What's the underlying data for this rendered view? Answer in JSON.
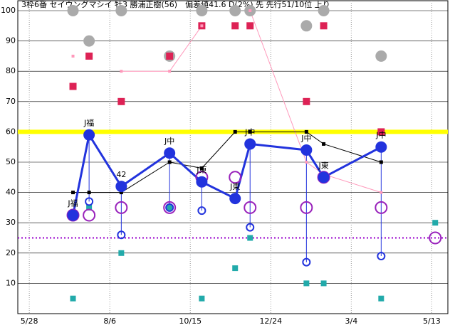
{
  "chart_data": {
    "type": "line",
    "title": "3枠6番 セイウングマシイ 牡3 勝浦正樹(56)　偏差値41.6 D(2%) 先 先行51/10位 上り",
    "x": [
      38,
      52,
      80,
      122,
      150,
      179,
      192,
      241,
      256,
      306,
      353
    ],
    "xlim": [
      -10,
      364
    ],
    "xticks": [
      {
        "value": 0,
        "label": "5/28"
      },
      {
        "value": 70,
        "label": "8/6"
      },
      {
        "value": 140,
        "label": "10/15"
      },
      {
        "value": 210,
        "label": "12/24"
      },
      {
        "value": 280,
        "label": "3/4"
      },
      {
        "value": 350,
        "label": "5/13"
      }
    ],
    "ylim": [
      0,
      100
    ],
    "yticks": [
      10,
      20,
      30,
      40,
      50,
      60,
      70,
      80,
      90,
      100
    ],
    "grid": true,
    "hlines": [
      {
        "value": 60,
        "color": "#ffff00",
        "width": 6,
        "dash": "none"
      },
      {
        "value": 25,
        "color": "#9900cc",
        "width": 2,
        "dash": "2,3"
      }
    ],
    "series": [
      {
        "color": "#aaaaaa",
        "marker": "circle",
        "size": 8,
        "line": false,
        "values": [
          100,
          90,
          100,
          85,
          100,
          100,
          100,
          95,
          100,
          85,
          null
        ]
      },
      {
        "color": "#dd2255",
        "marker": "square",
        "size": 5,
        "line": false,
        "values": [
          75,
          85,
          70,
          85,
          95,
          95,
          95,
          70,
          95,
          60,
          null
        ]
      },
      {
        "color": "#ff99bb",
        "marker": "square",
        "size": 2,
        "line": true,
        "width": 1,
        "values": [
          85,
          null,
          80,
          80,
          95,
          null,
          100,
          50,
          46,
          40,
          null
        ]
      },
      {
        "color": "#000000",
        "marker": "square",
        "size": 2.5,
        "line": true,
        "width": 1,
        "values": [
          40,
          40,
          40,
          50,
          48,
          60,
          60,
          60,
          56,
          50,
          null
        ]
      },
      {
        "color": "#22aaaa",
        "marker": "square",
        "size": 4,
        "line": false,
        "values": [
          5,
          35,
          20,
          35,
          5,
          15,
          25,
          10,
          10,
          5,
          30
        ]
      },
      {
        "color": "#9922bb",
        "marker": "ring",
        "size": 8,
        "line": false,
        "values": [
          32.5,
          32.5,
          35,
          35,
          45,
          45,
          35,
          35,
          45,
          35,
          25
        ]
      },
      {
        "color": "#2233dd",
        "marker": "ring",
        "size": 5,
        "line": false,
        "connect": 7,
        "values": [
          null,
          37,
          26,
          35,
          34,
          null,
          28.5,
          17,
          null,
          19,
          null
        ]
      },
      {
        "color": "#2233dd",
        "marker": "circle",
        "size": 8,
        "line": true,
        "width": 3,
        "point_labels": [
          "J福",
          "J福",
          "42",
          "J中",
          "J東",
          "J東",
          "J中",
          "J中",
          "J東",
          "J中",
          null
        ],
        "values": [
          32.5,
          59,
          42,
          53,
          43.5,
          38,
          56,
          54,
          45,
          55,
          null
        ]
      }
    ]
  }
}
